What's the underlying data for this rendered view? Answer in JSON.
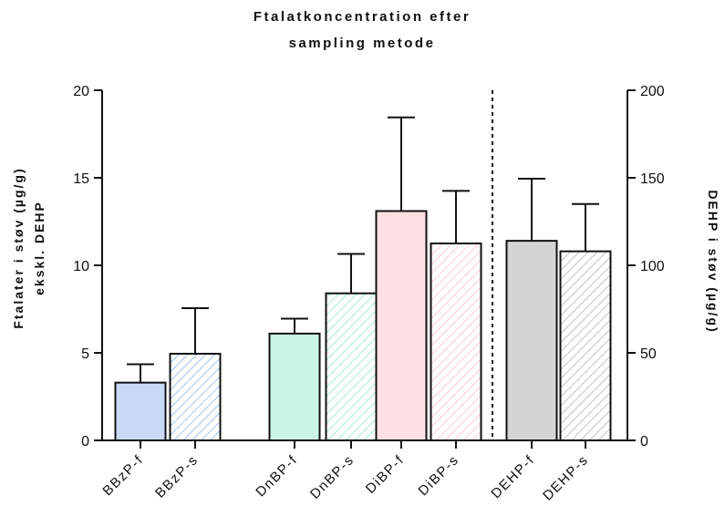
{
  "chart_data": {
    "type": "bar",
    "title_lines": [
      "Ftalatkoncentration efter",
      "sampling metode"
    ],
    "ylabel_left_lines": [
      "Ftalater i støv (µg/g)",
      "ekskl. DEHP"
    ],
    "ylabel_right": "DEHP i støv (µg/g)",
    "ylim_left": [
      0,
      20
    ],
    "ylim_right": [
      0,
      200
    ],
    "yticks_left": [
      "0",
      "5",
      "10",
      "15",
      "20"
    ],
    "yticks_right": [
      "0",
      "50",
      "100",
      "150",
      "200"
    ],
    "categories": [
      "BBzP-f",
      "BBzP-s",
      "DnBP-f",
      "DnBP-s",
      "DiBP-f",
      "DiBP-s",
      "DEHP-f",
      "DEHP-s"
    ],
    "values_left_axis": [
      3.3,
      4.95,
      6.1,
      8.4,
      13.1,
      11.25,
      11.4,
      10.8
    ],
    "error_upper_left_axis": [
      4.35,
      7.55,
      6.95,
      10.65,
      18.45,
      14.25,
      14.95,
      13.5
    ],
    "series_axis": [
      "left",
      "left",
      "left",
      "left",
      "left",
      "left",
      "right",
      "right"
    ],
    "colors": [
      "#c9d9f5",
      "#c9d9f5",
      "#cdf5e3",
      "#cdf5e3",
      "#fde0e3",
      "#fde0e3",
      "#d4d4d4",
      "#d4d4d4"
    ],
    "hatched": [
      false,
      true,
      false,
      true,
      false,
      true,
      false,
      true
    ],
    "separator_after_category": "DiBP-s",
    "grid": false,
    "legend": "none"
  }
}
